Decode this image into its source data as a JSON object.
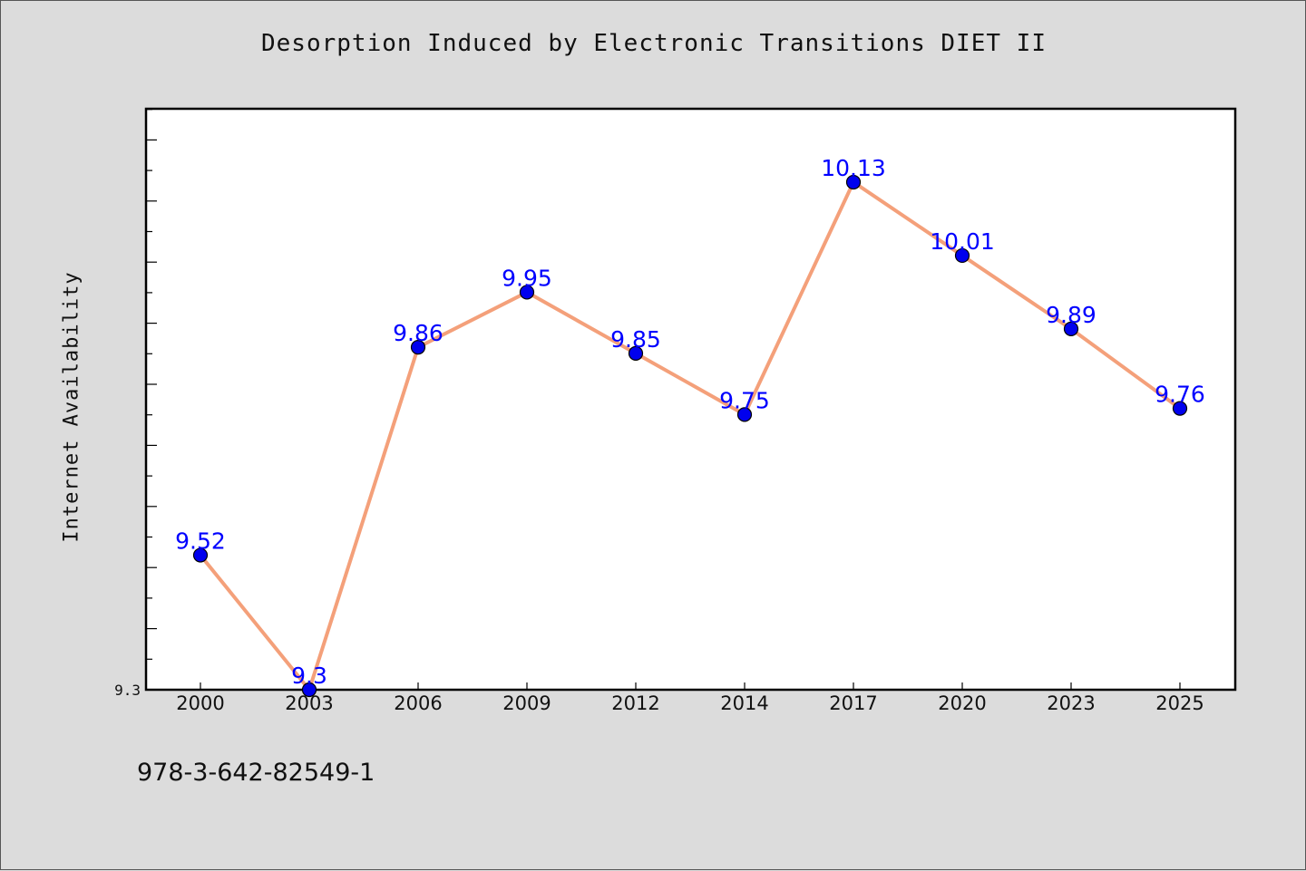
{
  "chart_data": {
    "type": "line",
    "title": "Desorption Induced by Electronic Transitions DIET II",
    "xlabel": "",
    "ylabel": "Internet Availability",
    "categories": [
      "2000",
      "2003",
      "2006",
      "2009",
      "2012",
      "2014",
      "2017",
      "2020",
      "2023",
      "2025"
    ],
    "series": [
      {
        "values": [
          9.52,
          9.3,
          9.86,
          9.95,
          9.85,
          9.75,
          10.13,
          10.01,
          9.89,
          9.76
        ],
        "labels": [
          "9.52",
          "9.3",
          "9.86",
          "9.95",
          "9.85",
          "9.75",
          "10.13",
          "10.01",
          "9.89",
          "9.76"
        ]
      }
    ],
    "ylim": [
      9.3,
      10.25
    ],
    "ytick_labels": [
      "9.3"
    ],
    "grid": false,
    "colors": {
      "line": "#f4a07a",
      "marker": "#0000ee",
      "marker_edge": "#000000",
      "data_label": "#0000ff"
    }
  },
  "footer": {
    "code": "978-3-642-82549-1"
  }
}
